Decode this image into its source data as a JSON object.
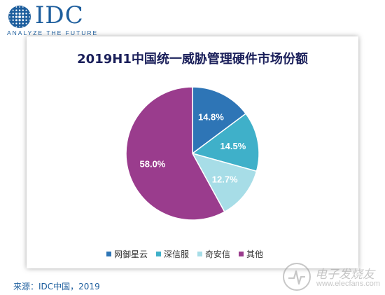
{
  "logo": {
    "text": "IDC",
    "tagline": "ANALYZE THE FUTURE",
    "color": "#1d5e9d"
  },
  "chart_data": {
    "type": "pie",
    "title": "2019H1中国统一威胁管理硬件市场份额",
    "slices": [
      {
        "label": "网御星云",
        "value": 14.8,
        "display": "14.8%",
        "color": "#2e75b6"
      },
      {
        "label": "深信服",
        "value": 14.5,
        "display": "14.5%",
        "color": "#3fb0c9"
      },
      {
        "label": "奇安信",
        "value": 12.7,
        "display": "12.7%",
        "color": "#a7dde7"
      },
      {
        "label": "其他",
        "value": 58.0,
        "display": "58.0%",
        "color": "#9a3c8d"
      }
    ],
    "legend_position": "bottom",
    "start_angle_deg": 0,
    "direction": "clockwise"
  },
  "source": "来源：IDC中国，2019",
  "watermark": {
    "text": "电子发烧友",
    "url": "www.elecfans.com"
  }
}
